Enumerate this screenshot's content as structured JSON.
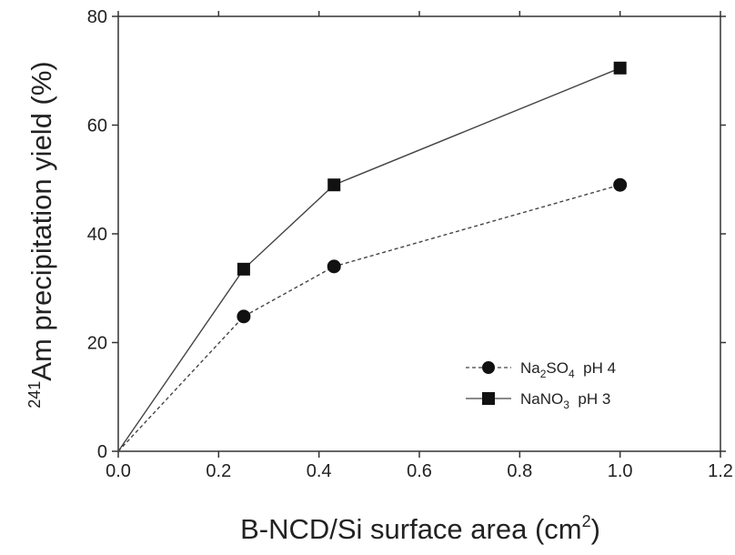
{
  "chart_data": {
    "type": "line",
    "title": "",
    "xlabel": "B-NCD/Si surface area (cm",
    "xlabel_sup": "2",
    "xlabel_end": ")",
    "ylabel_sup": "241",
    "ylabel": "Am precipitation yield (%)",
    "xlim": [
      0.0,
      1.2
    ],
    "ylim": [
      0,
      80
    ],
    "xticks": [
      0.0,
      0.2,
      0.4,
      0.6,
      0.8,
      1.0,
      1.2
    ],
    "xtick_labels": [
      "0.0",
      "0.2",
      "0.4",
      "0.6",
      "0.8",
      "1.0",
      "1.2"
    ],
    "yticks": [
      0,
      20,
      40,
      60,
      80
    ],
    "ytick_labels": [
      "0",
      "20",
      "40",
      "60",
      "80"
    ],
    "grid": false,
    "legend_position": "bottom-right",
    "series": [
      {
        "name_main": "Na",
        "name_sub1": "2",
        "name_mid": "SO",
        "name_sub2": "4",
        "name_end": "  pH 4",
        "marker": "circle",
        "line": "dashed",
        "x": [
          0.0,
          0.25,
          0.43,
          1.0
        ],
        "y": [
          0,
          24.8,
          34,
          49
        ]
      },
      {
        "name_main": "NaNO",
        "name_sub1": "3",
        "name_end": "  pH 3",
        "marker": "square",
        "line": "solid",
        "x": [
          0.0,
          0.25,
          0.43,
          1.0
        ],
        "y": [
          0,
          33.5,
          49,
          70.5
        ]
      }
    ]
  }
}
